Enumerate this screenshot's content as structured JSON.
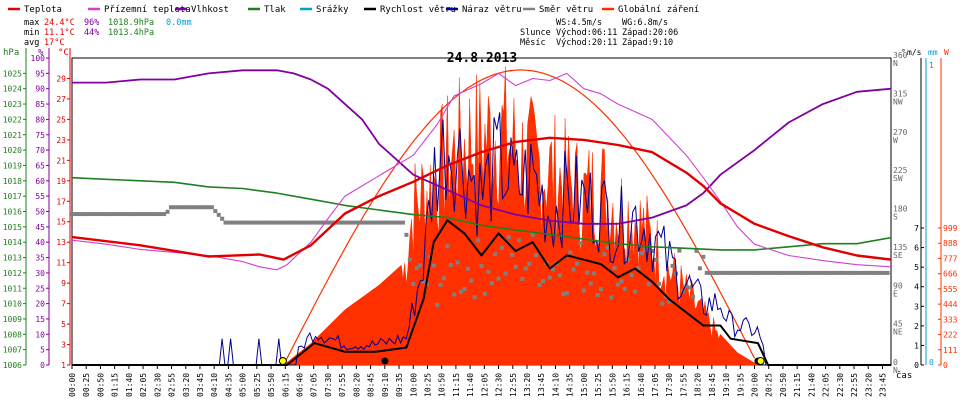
{
  "chart_data": {
    "type": "line",
    "title": "24.8.2013",
    "xlabel": "čas",
    "legend": [
      {
        "name": "Teplota",
        "color": "#e00000"
      },
      {
        "name": "Přízemní teplota",
        "color": "#d040d0"
      },
      {
        "name": "Vlhkost",
        "color": "#8000a0"
      },
      {
        "name": "Tlak",
        "color": "#208020"
      },
      {
        "name": "Srážky",
        "color": "#00a0d0"
      },
      {
        "name": "Rychlost větru",
        "color": "#000000"
      },
      {
        "name": "Náraz větru",
        "color": "#000090"
      },
      {
        "name": "Směr větru",
        "color": "#808080"
      },
      {
        "name": "Globální záření",
        "color": "#ff3000"
      }
    ],
    "stats": {
      "max_label": "max",
      "max_temp": "24.4°C",
      "max_hum": "96%",
      "max_press": "1018.9hPa",
      "rain": "0.0mm",
      "min_label": "min",
      "min_temp": "11.1°C",
      "min_hum": "44%",
      "min_press": "1013.4hPa",
      "avg_label": "avg",
      "avg_temp": "17°C",
      "ws": "WS:4.5m/s",
      "wg": "WG:6.8m/s",
      "sun_label": "Slunce",
      "sun_rise": "Východ:06:11",
      "sun_set": "Západ:20:06",
      "moon_label": "Měsíc",
      "moon_rise": "Východ:20:11",
      "moon_set": "Západ:9:10"
    },
    "x_ticks": [
      "00:00",
      "00:25",
      "00:50",
      "01:15",
      "01:40",
      "02:05",
      "02:30",
      "02:55",
      "03:20",
      "03:45",
      "04:10",
      "04:35",
      "05:00",
      "05:25",
      "05:50",
      "06:15",
      "06:40",
      "07:05",
      "07:30",
      "07:55",
      "08:20",
      "08:45",
      "09:10",
      "09:35",
      "10:00",
      "10:25",
      "10:50",
      "11:15",
      "11:40",
      "12:05",
      "12:30",
      "12:55",
      "13:20",
      "13:45",
      "14:10",
      "14:35",
      "15:00",
      "15:25",
      "15:50",
      "16:15",
      "16:40",
      "17:05",
      "17:30",
      "17:55",
      "18:20",
      "18:45",
      "19:10",
      "19:35",
      "20:00",
      "20:25",
      "20:50",
      "21:15",
      "21:40",
      "22:05",
      "22:30",
      "22:55",
      "23:20",
      "23:45"
    ],
    "axes": {
      "pressure": {
        "unit": "hPa",
        "range": [
          1006,
          1026
        ],
        "ticks": [
          "1006",
          "1007",
          "1008",
          "1009",
          "1010",
          "1011",
          "1012",
          "1013",
          "1014",
          "1015",
          "1016",
          "1017",
          "1018",
          "1019",
          "1020",
          "1021",
          "1022",
          "1023",
          "1024",
          "1025"
        ]
      },
      "humidity": {
        "unit": "%",
        "range": [
          0,
          100
        ],
        "ticks": [
          "0",
          "5",
          "10",
          "15",
          "20",
          "25",
          "30",
          "35",
          "40",
          "45",
          "50",
          "55",
          "60",
          "65",
          "70",
          "75",
          "80",
          "85",
          "90",
          "95",
          "100"
        ]
      },
      "temperature": {
        "unit": "°C",
        "range": [
          1,
          31
        ],
        "ticks": [
          "1",
          "3",
          "5",
          "7",
          "9",
          "11",
          "13",
          "15",
          "17",
          "19",
          "21",
          "23",
          "25",
          "27",
          "29"
        ]
      },
      "direction": {
        "unit": "°",
        "range": [
          0,
          360
        ],
        "ticks": [
          "0",
          "45",
          "90",
          "135",
          "180",
          "225",
          "270",
          "315",
          "360"
        ],
        "labels": [
          "N",
          "NE",
          "E",
          "SE",
          "S",
          "SW",
          "W",
          "NW",
          "N"
        ]
      },
      "wind": {
        "unit": "m/s",
        "range": [
          0,
          7
        ],
        "ticks": [
          "0",
          "1",
          "2",
          "3",
          "4",
          "5",
          "6",
          "7"
        ]
      },
      "rain": {
        "unit": "mm",
        "range": [
          0,
          1
        ],
        "ticks": [
          "0",
          "1"
        ]
      },
      "radiation": {
        "unit": "W",
        "range": [
          0,
          999
        ],
        "ticks": [
          "0",
          "111",
          "222",
          "333",
          "444",
          "555",
          "666",
          "777",
          "888",
          "999"
        ]
      }
    },
    "series": [
      {
        "name": "Teplota",
        "axis": "temperature",
        "t": [
          0,
          2,
          4,
          5.5,
          6.2,
          7,
          8,
          9,
          10,
          11,
          12,
          13,
          14,
          15,
          16,
          17,
          18,
          18.5,
          19,
          19.5,
          20,
          21,
          22,
          23,
          24
        ],
        "values": [
          13.5,
          12.7,
          11.6,
          11.8,
          11.3,
          12.7,
          15.8,
          17.5,
          18.9,
          20.5,
          21.8,
          22.8,
          23.2,
          23.0,
          22.5,
          21.8,
          19.8,
          18.5,
          16.8,
          15.8,
          14.8,
          13.6,
          12.5,
          11.7,
          11.3
        ]
      },
      {
        "name": "Přízemní teplota",
        "axis": "temperature",
        "t": [
          0,
          1,
          2,
          3,
          4,
          5,
          5.5,
          6,
          6.3,
          7,
          7.5,
          8,
          9,
          10,
          10.7,
          11.2,
          12,
          12.5,
          13,
          13.5,
          14,
          14.5,
          15,
          15.5,
          16,
          17,
          18,
          18.5,
          19,
          19.5,
          20,
          21,
          22,
          23,
          24
        ],
        "values": [
          13.2,
          12.8,
          12.3,
          12.0,
          11.7,
          11.1,
          10.6,
          10.3,
          10.8,
          13.0,
          15.3,
          17.5,
          19.5,
          21.5,
          24.5,
          27.3,
          28.5,
          29.5,
          28.3,
          29.0,
          28.8,
          29.5,
          28.0,
          27.5,
          26.5,
          25.0,
          21.5,
          19.3,
          17.0,
          14.5,
          12.8,
          11.7,
          11.2,
          10.8,
          10.6
        ]
      },
      {
        "name": "Vlhkost",
        "axis": "humidity",
        "t": [
          0,
          1,
          2,
          3,
          4,
          5,
          6,
          6.5,
          7,
          7.5,
          8,
          8.5,
          9,
          9.5,
          10,
          11,
          12,
          13,
          14,
          15,
          16,
          17,
          18,
          18.5,
          19,
          20,
          21,
          22,
          23,
          24
        ],
        "values": [
          92,
          92,
          93,
          93,
          95,
          96,
          96,
          95,
          93,
          90,
          85,
          80,
          72,
          67,
          62,
          57,
          52,
          49,
          47,
          46,
          46,
          48,
          52,
          56,
          62,
          70,
          79,
          85,
          89,
          90
        ]
      },
      {
        "name": "Tlak",
        "axis": "pressure",
        "t": [
          0,
          1,
          2,
          3,
          4,
          5,
          6,
          7,
          8,
          9,
          10,
          11,
          12,
          13,
          14,
          15,
          16,
          17,
          18,
          19,
          20,
          21,
          22,
          23,
          24
        ],
        "values": [
          1018.2,
          1018.1,
          1018.0,
          1017.9,
          1017.6,
          1017.5,
          1017.2,
          1016.8,
          1016.4,
          1016.1,
          1015.8,
          1015.6,
          1015.1,
          1014.8,
          1014.5,
          1014.2,
          1013.9,
          1013.7,
          1013.6,
          1013.5,
          1013.5,
          1013.7,
          1013.9,
          1013.9,
          1014.3
        ]
      },
      {
        "name": "Rychlost větru",
        "axis": "wind",
        "t": [
          0,
          2.2,
          3.3,
          5.5,
          6.3,
          7.1,
          8.0,
          8.9,
          9.8,
          10.3,
          10.6,
          11.0,
          11.5,
          12.0,
          12.5,
          13.0,
          13.5,
          14.0,
          14.5,
          15.0,
          15.5,
          16.0,
          16.5,
          17.0,
          17.5,
          18.0,
          18.5,
          19.0,
          19.3,
          20.1,
          20.4,
          20.6,
          24
        ],
        "values": [
          0,
          0,
          0,
          0,
          0,
          0.5,
          0.3,
          0.3,
          0.4,
          1.5,
          2.8,
          3.3,
          3.0,
          2.5,
          3.0,
          2.6,
          2.8,
          2.2,
          2.5,
          2.4,
          2.3,
          2.0,
          2.2,
          1.9,
          1.5,
          1.2,
          0.9,
          0.9,
          0.6,
          0.5,
          0,
          0,
          0
        ]
      },
      {
        "name": "Směr větru",
        "axis": "direction",
        "t": [
          0,
          2.75,
          2.9,
          4.1,
          4.5,
          9.75,
          10.0,
          11.5,
          12.5,
          13.5,
          14.5,
          15.5,
          16.5,
          17.5,
          18.4,
          18.6,
          24
        ],
        "values": [
          177,
          177,
          185,
          185,
          167,
          167,
          95,
          110,
          120,
          125,
          115,
          115,
          105,
          100,
          105,
          108,
          108
        ]
      },
      {
        "name": "Globální záření",
        "axis": "radiation",
        "t": [
          6.2,
          7,
          8,
          9,
          9.7,
          10,
          10.6,
          11,
          11.7,
          12,
          12.5,
          12.9,
          13.3,
          13.7,
          14.2,
          14.6,
          15,
          15.5,
          16,
          16.5,
          17,
          17.5,
          18,
          18.5,
          19,
          19.5,
          20.1
        ],
        "values": [
          0,
          70,
          180,
          260,
          330,
          600,
          700,
          780,
          860,
          850,
          900,
          830,
          780,
          760,
          720,
          690,
          640,
          680,
          600,
          560,
          470,
          360,
          270,
          190,
          100,
          40,
          0
        ]
      }
    ]
  }
}
